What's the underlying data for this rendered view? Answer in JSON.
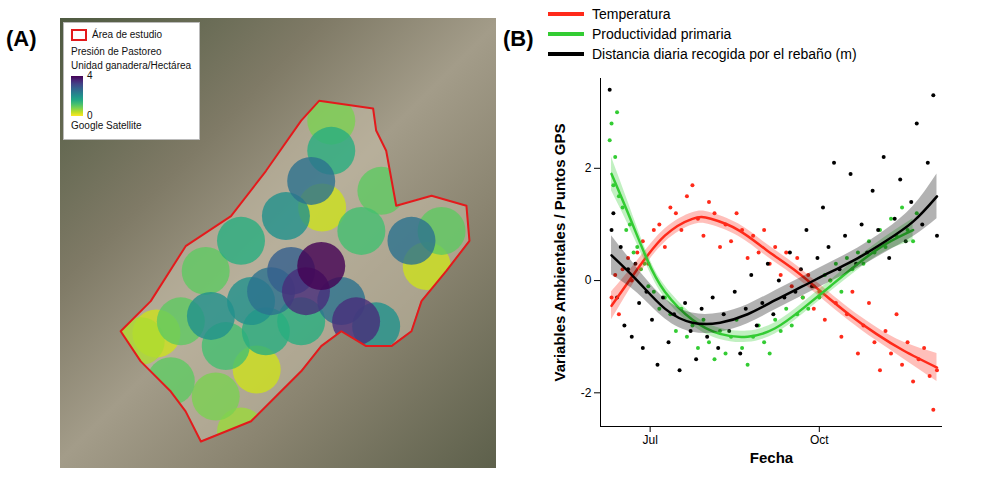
{
  "chart_data": [
    {
      "type": "map",
      "panel_label": "(A)",
      "xlim": [
        0,
        100
      ],
      "ylim": [
        0,
        100
      ],
      "tick_labels": false,
      "legend": "top-left",
      "basemap": "Google Satellite",
      "legend_title": "Presión de Pastoreo",
      "study_area": {
        "label": "Área de estudio",
        "color": "#e31a1c",
        "x": [
          13.8,
          20.7,
          28.7,
          39.1,
          47.1,
          55.2,
          59.3,
          71.7,
          72.4,
          74.7,
          77.0,
          85.1,
          93.1,
          93.8,
          88.5,
          82.8,
          80.5,
          75.9,
          70.1,
          64.4,
          59.8,
          55.2,
          49.4,
          43.7,
          32.2,
          28.7,
          25.3,
          18.4
        ],
        "y": [
          30.5,
          37.2,
          49.4,
          56.1,
          66.1,
          77.3,
          81.7,
          80.0,
          75.1,
          70.6,
          58.4,
          60.6,
          58.4,
          50.6,
          43.9,
          37.2,
          30.5,
          27.2,
          27.2,
          30.5,
          27.2,
          21.6,
          16.0,
          10.5,
          6.0,
          12.7,
          17.1,
          23.8
        ]
      },
      "colorbar": {
        "label": "Unidad ganadera/Hectárea",
        "range": [
          0,
          4
        ],
        "ticks": [
          0,
          4
        ]
      },
      "hotspots": {
        "x": [
          45.0,
          60.0,
          84.0,
          22.0,
          18.4,
          41.4,
          35.6,
          62.1,
          33.3,
          27.6,
          87.4,
          73.6,
          25.3,
          69.0,
          37.9,
          62.1,
          41.4,
          47.1,
          55.2,
          43.7,
          72.4,
          51.7,
          34.5,
          48.3,
          64.4,
          57.5,
          80.5,
          52.9,
          56.3,
          67.8,
          59.8
        ],
        "y": [
          22.0,
          58.0,
          45.0,
          30.0,
          28.3,
          8.2,
          16.0,
          77.3,
          43.9,
          32.7,
          52.8,
          61.7,
          19.4,
          52.8,
          27.2,
          70.6,
          50.6,
          30.5,
          32.7,
          37.2,
          31.6,
          56.1,
          33.9,
          39.4,
          37.2,
          63.9,
          50.6,
          43.9,
          39.4,
          32.7,
          45.0
        ],
        "values": [
          0.3,
          0.3,
          0.3,
          0.3,
          0.5,
          0.6,
          0.8,
          0.8,
          1.0,
          1.0,
          1.0,
          1.0,
          1.0,
          1.2,
          1.2,
          1.5,
          1.5,
          1.5,
          1.5,
          2.0,
          2.0,
          2.0,
          2.0,
          2.5,
          2.5,
          2.5,
          2.5,
          2.8,
          3.5,
          3.5,
          4.0
        ]
      }
    },
    {
      "type": "scatter",
      "panel_label": "(B)",
      "xlabel": "Fecha",
      "ylabel": "Variables Ambientales / Puntos GPS",
      "xlim": [
        155,
        341
      ],
      "xticks": [
        {
          "value": 182,
          "label": "Jul"
        },
        {
          "value": 274,
          "label": "Oct"
        }
      ],
      "ylim": [
        -2.6,
        3.6
      ],
      "yticks": [
        -2,
        0,
        2
      ],
      "grid": false,
      "legend": "top",
      "series": [
        {
          "name": "Temperatura",
          "color": "#ff2a1a",
          "x": [
            161,
            163,
            165,
            167,
            170,
            172,
            175,
            178,
            181,
            184,
            187,
            190,
            193,
            196,
            199,
            202,
            205,
            208,
            211,
            214,
            217,
            220,
            223,
            226,
            229,
            232,
            235,
            238,
            241,
            244,
            247,
            250,
            253,
            256,
            259,
            262,
            265,
            268,
            271,
            274,
            277,
            280,
            283,
            286,
            289,
            292,
            295,
            298,
            301,
            304,
            307,
            310,
            313,
            316,
            319,
            322,
            325,
            328,
            331,
            334,
            336,
            338
          ],
          "values": [
            -0.3,
            0.1,
            -0.6,
            0.2,
            0.4,
            0.0,
            0.5,
            0.7,
            0.3,
            0.9,
            1.0,
            0.6,
            1.3,
            1.2,
            0.9,
            1.5,
            1.7,
            1.1,
            0.8,
            1.4,
            1.2,
            0.6,
            1.0,
            0.7,
            1.2,
            0.9,
            0.4,
            0.8,
            0.5,
            0.9,
            0.3,
            0.6,
            0.1,
            0.5,
            -0.1,
            0.4,
            -0.3,
            0.1,
            -0.5,
            -0.2,
            -0.7,
            0.0,
            -0.4,
            -1.0,
            -0.6,
            -0.2,
            -1.3,
            -0.8,
            -0.4,
            -1.1,
            -1.6,
            -0.9,
            -1.3,
            -0.6,
            -1.5,
            -1.1,
            -1.8,
            -1.4,
            -1.2,
            -1.7,
            -2.3,
            -1.6
          ],
          "trend": {
            "x": [
              161,
              175,
              190,
              205,
              215,
              230,
              245,
              260,
              275,
              290,
              305,
              320,
              338
            ],
            "values": [
              -0.45,
              0.2,
              0.8,
              1.1,
              1.1,
              0.9,
              0.55,
              0.2,
              -0.2,
              -0.6,
              -0.95,
              -1.25,
              -1.55
            ],
            "lower": [
              -0.7,
              0.05,
              0.68,
              0.99,
              0.99,
              0.79,
              0.44,
              0.09,
              -0.31,
              -0.71,
              -1.07,
              -1.4,
              -1.8
            ],
            "upper": [
              -0.2,
              0.35,
              0.92,
              1.21,
              1.21,
              1.01,
              0.66,
              0.31,
              -0.09,
              -0.49,
              -0.83,
              -1.1,
              -1.3
            ]
          }
        },
        {
          "name": "Productividad primaria",
          "color": "#33cc33",
          "x": [
            160,
            161,
            162,
            163,
            164,
            165,
            167,
            169,
            171,
            173,
            175,
            177,
            179,
            181,
            184,
            187,
            190,
            193,
            196,
            199,
            202,
            205,
            208,
            211,
            214,
            217,
            220,
            223,
            226,
            229,
            232,
            235,
            238,
            241,
            244,
            247,
            250,
            253,
            256,
            259,
            262,
            265,
            268,
            271,
            274,
            277,
            280,
            283,
            286,
            289,
            292,
            295,
            298,
            301,
            304,
            307,
            310,
            313,
            316,
            319,
            322,
            325,
            327
          ],
          "values": [
            2.5,
            2.8,
            1.7,
            2.2,
            3.0,
            1.5,
            1.3,
            0.9,
            1.0,
            0.5,
            0.6,
            0.2,
            0.3,
            -0.1,
            -0.2,
            -0.5,
            -0.3,
            -0.6,
            -0.9,
            -0.5,
            -1.0,
            -0.8,
            -1.2,
            -0.7,
            -1.1,
            -1.4,
            -0.9,
            -1.3,
            -1.0,
            -0.7,
            -1.2,
            -1.5,
            -1.0,
            -0.8,
            -1.1,
            -1.3,
            -0.7,
            -0.9,
            -0.5,
            -0.8,
            -0.6,
            -0.3,
            -0.5,
            -0.1,
            -0.3,
            0.1,
            0.0,
            0.3,
            -0.2,
            0.4,
            0.2,
            0.5,
            0.3,
            0.7,
            0.5,
            0.9,
            0.6,
            1.1,
            0.8,
            1.3,
            0.9,
            0.7,
            1.2
          ],
          "trend": {
            "x": [
              161,
              170,
              180,
              190,
              205,
              220,
              235,
              250,
              265,
              280,
              295,
              310,
              325
            ],
            "values": [
              1.9,
              1.2,
              0.4,
              -0.2,
              -0.7,
              -0.95,
              -1.0,
              -0.85,
              -0.5,
              -0.1,
              0.3,
              0.65,
              0.9
            ],
            "lower": [
              1.6,
              1.0,
              0.28,
              -0.31,
              -0.8,
              -1.05,
              -1.1,
              -0.95,
              -0.6,
              -0.2,
              0.19,
              0.52,
              0.7
            ],
            "upper": [
              2.2,
              1.4,
              0.52,
              -0.09,
              -0.6,
              -0.85,
              -0.9,
              -0.75,
              -0.4,
              0.0,
              0.41,
              0.78,
              1.1
            ]
          }
        },
        {
          "name": "Distancia diaria recogida por el rebaño (m)",
          "color": "#000000",
          "x": [
            160,
            161,
            162,
            164,
            166,
            168,
            170,
            172,
            174,
            176,
            178,
            180,
            183,
            186,
            189,
            192,
            195,
            198,
            201,
            204,
            207,
            210,
            213,
            216,
            219,
            222,
            225,
            228,
            231,
            234,
            237,
            240,
            243,
            246,
            249,
            252,
            255,
            258,
            261,
            264,
            267,
            270,
            273,
            276,
            279,
            282,
            285,
            288,
            291,
            294,
            297,
            300,
            303,
            306,
            309,
            312,
            315,
            318,
            321,
            324,
            327,
            330,
            333,
            336,
            338
          ],
          "values": [
            3.4,
            0.9,
            1.2,
            -0.3,
            0.6,
            -0.8,
            0.2,
            -1.0,
            0.3,
            -0.4,
            -1.2,
            -0.2,
            -0.7,
            -1.5,
            -0.3,
            -1.1,
            -0.6,
            -1.6,
            -0.4,
            -0.9,
            -1.4,
            -0.5,
            -1.0,
            -0.3,
            -1.2,
            -0.6,
            -0.9,
            -0.2,
            -1.3,
            -0.5,
            0.1,
            -0.8,
            -0.4,
            0.3,
            -0.6,
            0.0,
            -0.3,
            0.5,
            -0.2,
            0.2,
            0.9,
            -0.1,
            0.4,
            1.3,
            0.6,
            2.1,
            0.2,
            0.8,
            1.9,
            0.3,
            1.0,
            0.5,
            1.6,
            0.9,
            2.2,
            0.4,
            1.1,
            1.8,
            0.7,
            1.4,
            2.8,
            1.0,
            2.1,
            3.3,
            0.8
          ],
          "trend": {
            "x": [
              161,
              175,
              190,
              205,
              220,
              235,
              250,
              265,
              280,
              295,
              310,
              325,
              338
            ],
            "values": [
              0.45,
              0.0,
              -0.5,
              -0.75,
              -0.75,
              -0.6,
              -0.35,
              -0.1,
              0.15,
              0.4,
              0.7,
              1.05,
              1.5
            ],
            "lower": [
              0.1,
              -0.22,
              -0.68,
              -0.92,
              -0.92,
              -0.77,
              -0.52,
              -0.27,
              -0.02,
              0.22,
              0.5,
              0.78,
              1.1
            ],
            "upper": [
              0.8,
              0.22,
              -0.32,
              -0.58,
              -0.58,
              -0.43,
              -0.18,
              0.07,
              0.32,
              0.58,
              0.9,
              1.32,
              1.9
            ]
          }
        }
      ]
    }
  ]
}
